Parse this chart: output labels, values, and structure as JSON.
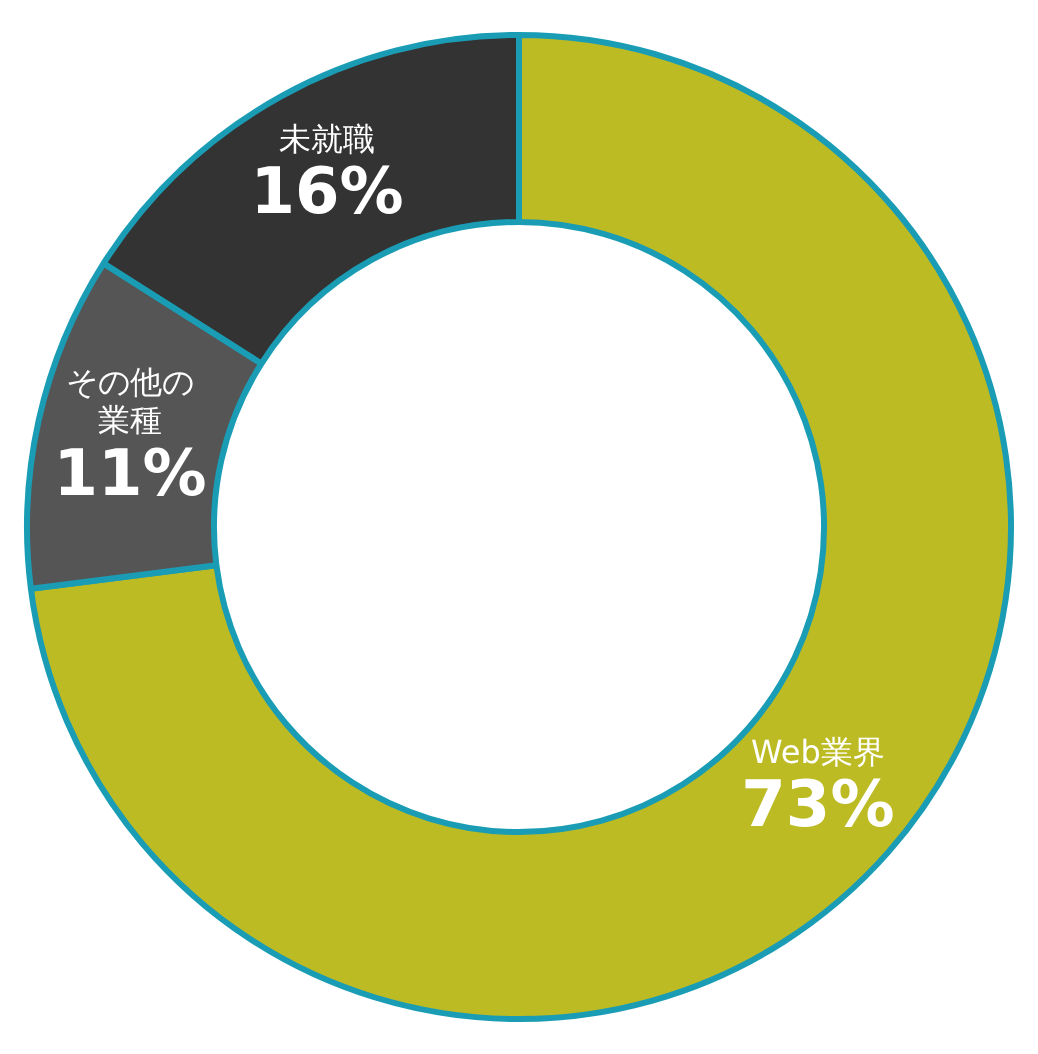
{
  "chart_data": {
    "type": "donut",
    "categories": [
      "Web業界",
      "その他の業種",
      "未就職"
    ],
    "values": [
      73,
      11,
      16
    ],
    "colors": [
      "#bdbb24",
      "#555555",
      "#333333"
    ],
    "value_labels": [
      "73%",
      "11%",
      "16%"
    ]
  }
}
